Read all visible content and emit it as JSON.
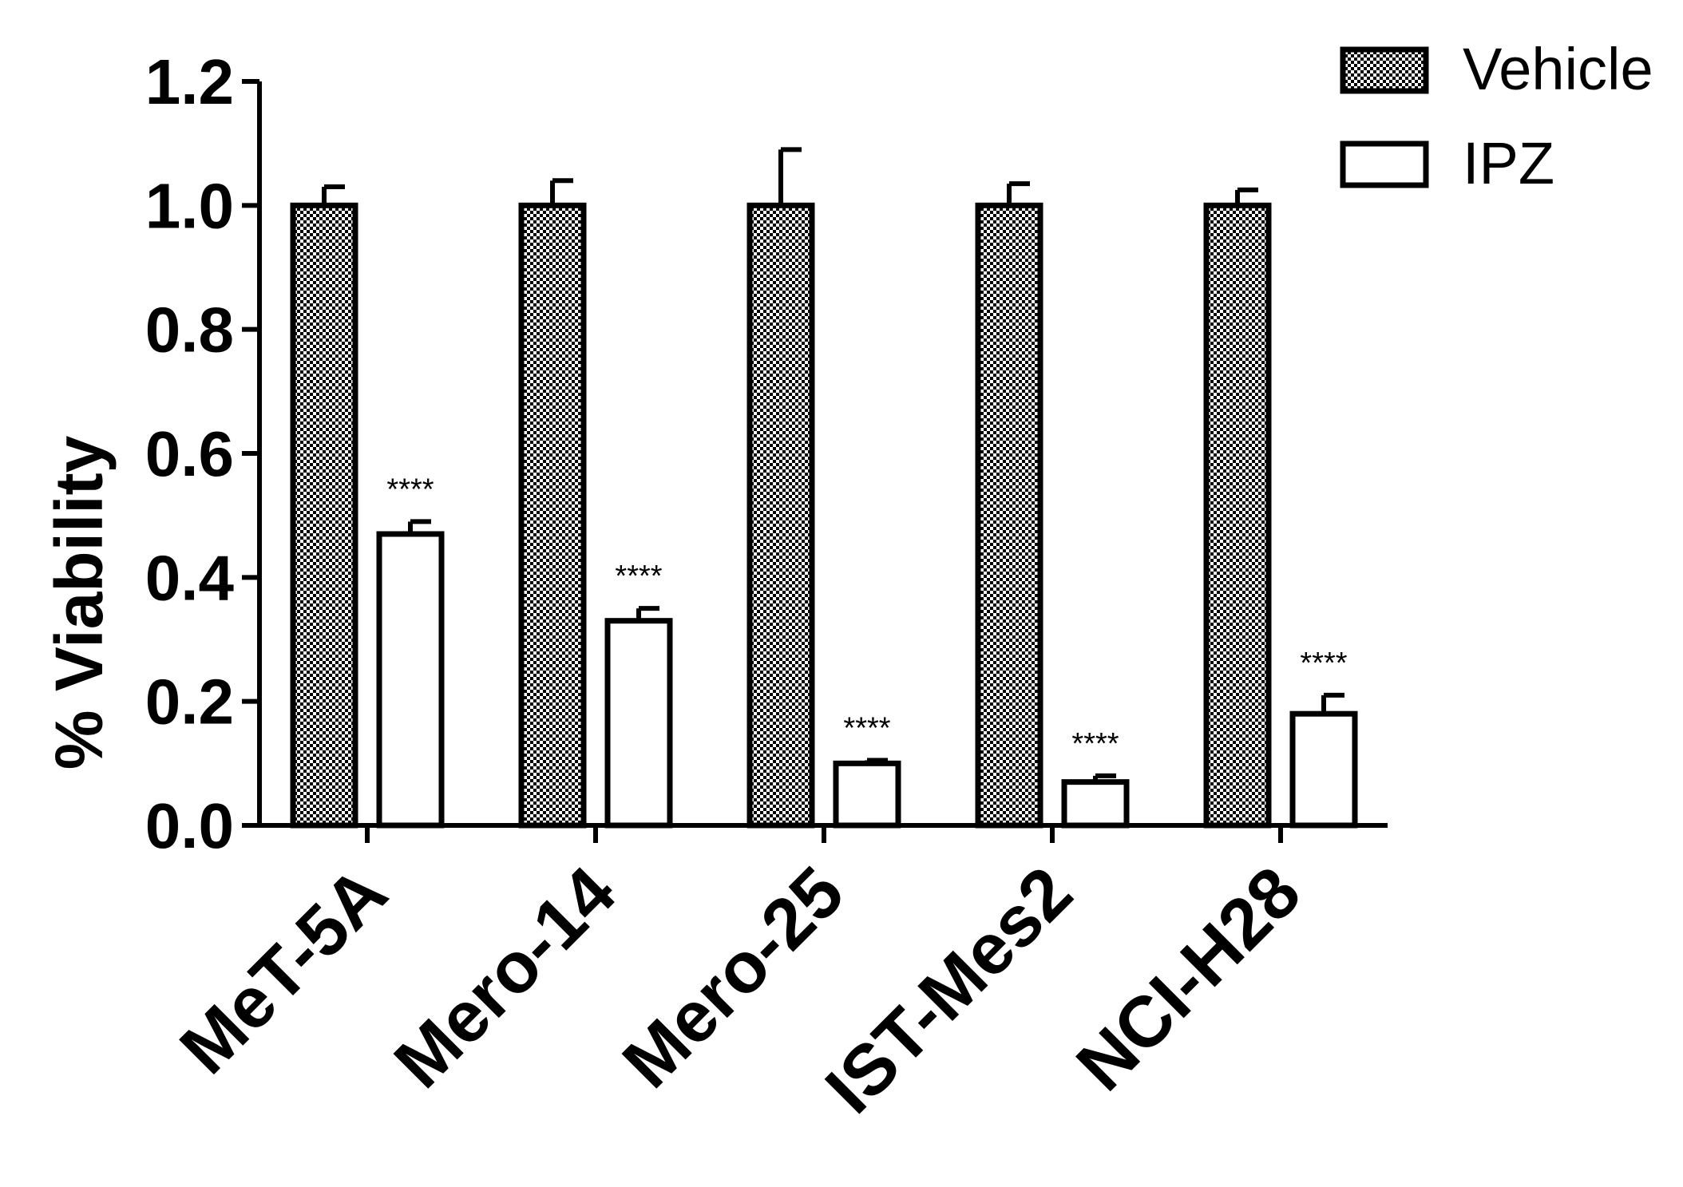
{
  "chart_data": {
    "type": "bar",
    "title": "",
    "xlabel": "",
    "ylabel": "% Viability",
    "ylim": [
      0,
      1.2
    ],
    "yticks": [
      "0.0",
      "0.2",
      "0.4",
      "0.6",
      "0.8",
      "1.0",
      "1.2"
    ],
    "categories": [
      "MeT-5A",
      "Mero-14",
      "Mero-25",
      "IST-Mes2",
      "NCI-H28"
    ],
    "series": [
      {
        "name": "Vehicle",
        "values": [
          1.0,
          1.0,
          1.0,
          1.0,
          1.0
        ],
        "errors": [
          0.03,
          0.04,
          0.09,
          0.035,
          0.025
        ],
        "fill": "checker"
      },
      {
        "name": "IPZ",
        "values": [
          0.47,
          0.33,
          0.1,
          0.07,
          0.18
        ],
        "errors": [
          0.02,
          0.02,
          0.005,
          0.01,
          0.03
        ],
        "fill": "white"
      }
    ],
    "annotations": [
      "****",
      "****",
      "****",
      "****",
      "****"
    ],
    "legend_position": "top-right",
    "grid": false,
    "colors": {
      "ink": "#000000",
      "background": "#ffffff"
    }
  }
}
